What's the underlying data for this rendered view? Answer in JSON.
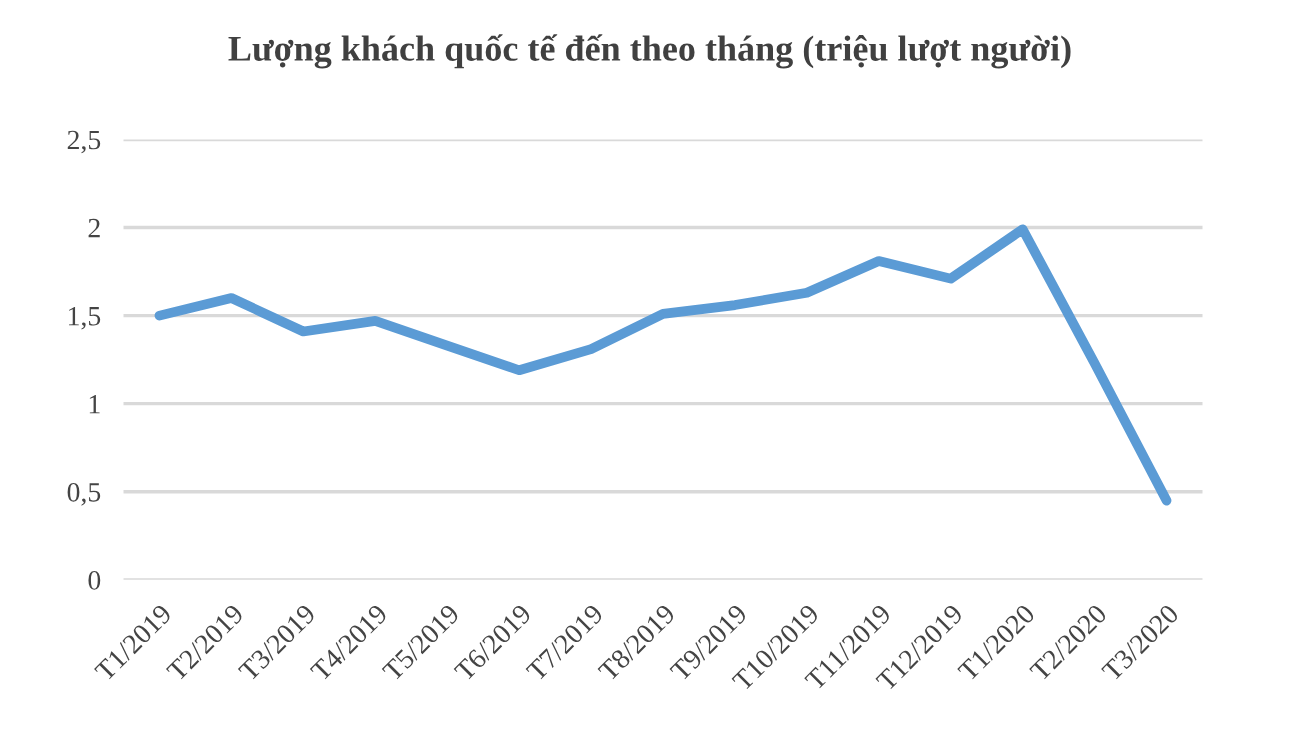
{
  "chart_data": {
    "type": "line",
    "title": "Lượng khách quốc tế đến theo tháng (triệu lượt người)",
    "categories": [
      "T1/2019",
      "T2/2019",
      "T3/2019",
      "T4/2019",
      "T5/2019",
      "T6/2019",
      "T7/2019",
      "T8/2019",
      "T9/2019",
      "T10/2019",
      "T11/2019",
      "T12/2019",
      "T1/2020",
      "T2/2020",
      "T3/2020"
    ],
    "series": [
      {
        "color": "#5b9bd5",
        "values": [
          1.5,
          1.6,
          1.41,
          1.47,
          1.33,
          1.19,
          1.31,
          1.51,
          1.56,
          1.63,
          1.81,
          1.71,
          1.99,
          1.23,
          0.45
        ]
      }
    ],
    "ylim": [
      0,
      2.5
    ],
    "yticks": [
      {
        "value": 0,
        "label": "0"
      },
      {
        "value": 0.5,
        "label": "0,5"
      },
      {
        "value": 1,
        "label": "1"
      },
      {
        "value": 1.5,
        "label": "1,5"
      },
      {
        "value": 2,
        "label": "2"
      },
      {
        "value": 2.5,
        "label": "2,5"
      }
    ],
    "grid": "y",
    "marker": "none",
    "line_style": "solid"
  }
}
